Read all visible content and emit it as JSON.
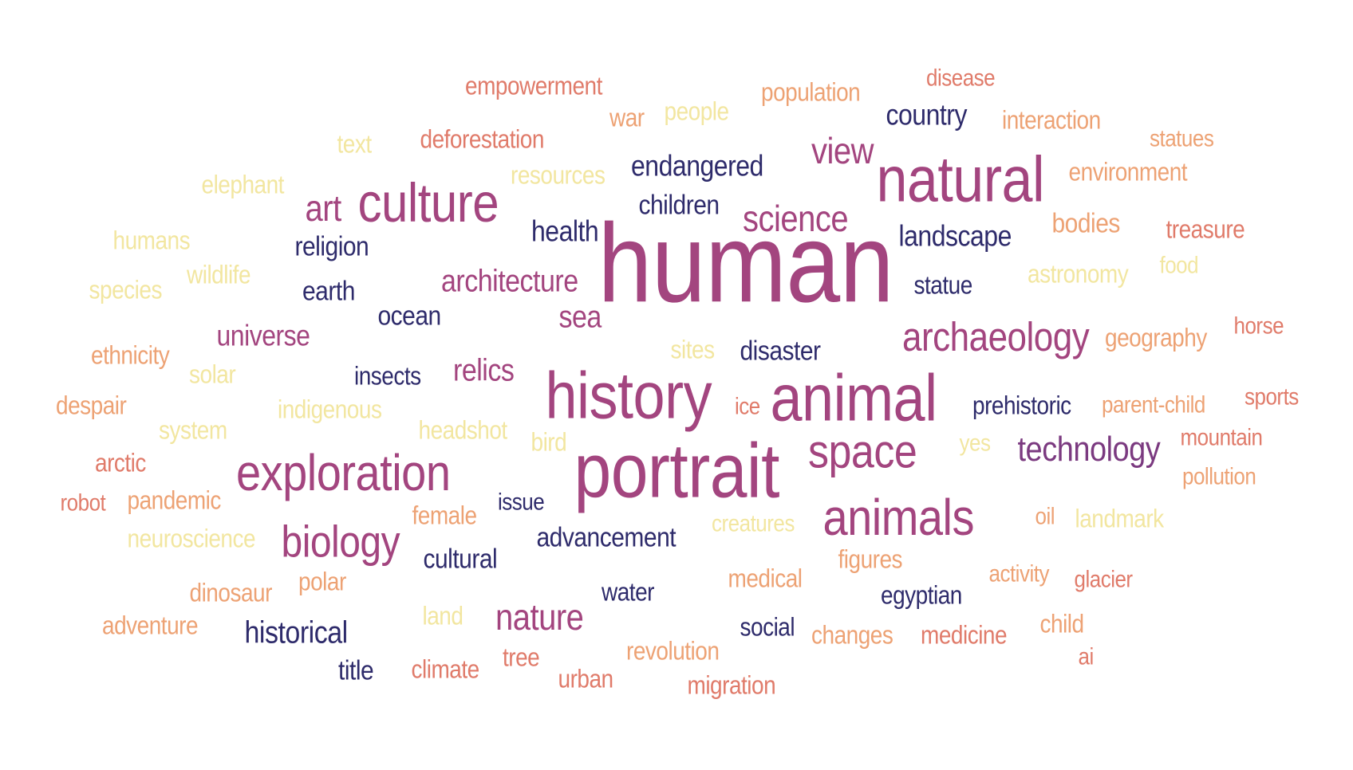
{
  "palette": {
    "c1": "#2e2b6b",
    "c2": "#7b3a80",
    "c3": "#a3457f",
    "c4": "#e07b6a",
    "c5": "#eda274",
    "c6": "#f2e6a0"
  },
  "words": [
    {
      "text": "human",
      "color": "c3"
    },
    {
      "text": "portrait",
      "color": "c3"
    },
    {
      "text": "history",
      "color": "c3"
    },
    {
      "text": "animal",
      "color": "c3"
    },
    {
      "text": "natural",
      "color": "c3"
    },
    {
      "text": "animals",
      "color": "c3"
    },
    {
      "text": "culture",
      "color": "c3"
    },
    {
      "text": "exploration",
      "color": "c3"
    },
    {
      "text": "space",
      "color": "c3"
    },
    {
      "text": "biology",
      "color": "c3"
    },
    {
      "text": "archaeology",
      "color": "c3"
    },
    {
      "text": "science",
      "color": "c3"
    },
    {
      "text": "view",
      "color": "c3"
    },
    {
      "text": "art",
      "color": "c3"
    },
    {
      "text": "nature",
      "color": "c3"
    },
    {
      "text": "technology",
      "color": "c2"
    },
    {
      "text": "architecture",
      "color": "c3"
    },
    {
      "text": "sea",
      "color": "c3"
    },
    {
      "text": "relics",
      "color": "c3"
    },
    {
      "text": "universe",
      "color": "c3"
    },
    {
      "text": "landscape",
      "color": "c1"
    },
    {
      "text": "health",
      "color": "c1"
    },
    {
      "text": "endangered",
      "color": "c1"
    },
    {
      "text": "children",
      "color": "c1"
    },
    {
      "text": "country",
      "color": "c1"
    },
    {
      "text": "religion",
      "color": "c1"
    },
    {
      "text": "earth",
      "color": "c1"
    },
    {
      "text": "ocean",
      "color": "c1"
    },
    {
      "text": "statue",
      "color": "c1"
    },
    {
      "text": "disaster",
      "color": "c1"
    },
    {
      "text": "prehistoric",
      "color": "c1"
    },
    {
      "text": "insects",
      "color": "c1"
    },
    {
      "text": "issue",
      "color": "c1"
    },
    {
      "text": "advancement",
      "color": "c1"
    },
    {
      "text": "cultural",
      "color": "c1"
    },
    {
      "text": "water",
      "color": "c1"
    },
    {
      "text": "egyptian",
      "color": "c1"
    },
    {
      "text": "social",
      "color": "c1"
    },
    {
      "text": "historical",
      "color": "c1"
    },
    {
      "text": "title",
      "color": "c1"
    },
    {
      "text": "empowerment",
      "color": "c4"
    },
    {
      "text": "disease",
      "color": "c4"
    },
    {
      "text": "population",
      "color": "c5"
    },
    {
      "text": "war",
      "color": "c5"
    },
    {
      "text": "people",
      "color": "c6"
    },
    {
      "text": "interaction",
      "color": "c5"
    },
    {
      "text": "statues",
      "color": "c5"
    },
    {
      "text": "text",
      "color": "c6"
    },
    {
      "text": "deforestation",
      "color": "c4"
    },
    {
      "text": "environment",
      "color": "c5"
    },
    {
      "text": "resources",
      "color": "c6"
    },
    {
      "text": "elephant",
      "color": "c6"
    },
    {
      "text": "bodies",
      "color": "c5"
    },
    {
      "text": "treasure",
      "color": "c4"
    },
    {
      "text": "humans",
      "color": "c6"
    },
    {
      "text": "wildlife",
      "color": "c6"
    },
    {
      "text": "astronomy",
      "color": "c6"
    },
    {
      "text": "food",
      "color": "c6"
    },
    {
      "text": "species",
      "color": "c6"
    },
    {
      "text": "ethnicity",
      "color": "c5"
    },
    {
      "text": "sites",
      "color": "c6"
    },
    {
      "text": "geography",
      "color": "c5"
    },
    {
      "text": "horse",
      "color": "c4"
    },
    {
      "text": "solar",
      "color": "c6"
    },
    {
      "text": "despair",
      "color": "c5"
    },
    {
      "text": "indigenous",
      "color": "c6"
    },
    {
      "text": "ice",
      "color": "c4"
    },
    {
      "text": "parent-child",
      "color": "c5"
    },
    {
      "text": "sports",
      "color": "c4"
    },
    {
      "text": "system",
      "color": "c6"
    },
    {
      "text": "headshot",
      "color": "c6"
    },
    {
      "text": "bird",
      "color": "c6"
    },
    {
      "text": "yes",
      "color": "c6"
    },
    {
      "text": "mountain",
      "color": "c4"
    },
    {
      "text": "arctic",
      "color": "c4"
    },
    {
      "text": "pollution",
      "color": "c5"
    },
    {
      "text": "robot",
      "color": "c4"
    },
    {
      "text": "pandemic",
      "color": "c5"
    },
    {
      "text": "female",
      "color": "c5"
    },
    {
      "text": "oil",
      "color": "c5"
    },
    {
      "text": "landmark",
      "color": "c6"
    },
    {
      "text": "creatures",
      "color": "c6"
    },
    {
      "text": "neuroscience",
      "color": "c6"
    },
    {
      "text": "figures",
      "color": "c5"
    },
    {
      "text": "polar",
      "color": "c5"
    },
    {
      "text": "medical",
      "color": "c5"
    },
    {
      "text": "activity",
      "color": "c5"
    },
    {
      "text": "glacier",
      "color": "c4"
    },
    {
      "text": "dinosaur",
      "color": "c5"
    },
    {
      "text": "land",
      "color": "c6"
    },
    {
      "text": "adventure",
      "color": "c5"
    },
    {
      "text": "child",
      "color": "c5"
    },
    {
      "text": "changes",
      "color": "c5"
    },
    {
      "text": "medicine",
      "color": "c4"
    },
    {
      "text": "revolution",
      "color": "c5"
    },
    {
      "text": "tree",
      "color": "c4"
    },
    {
      "text": "ai",
      "color": "c4"
    },
    {
      "text": "climate",
      "color": "c4"
    },
    {
      "text": "urban",
      "color": "c4"
    },
    {
      "text": "migration",
      "color": "c4"
    }
  ]
}
